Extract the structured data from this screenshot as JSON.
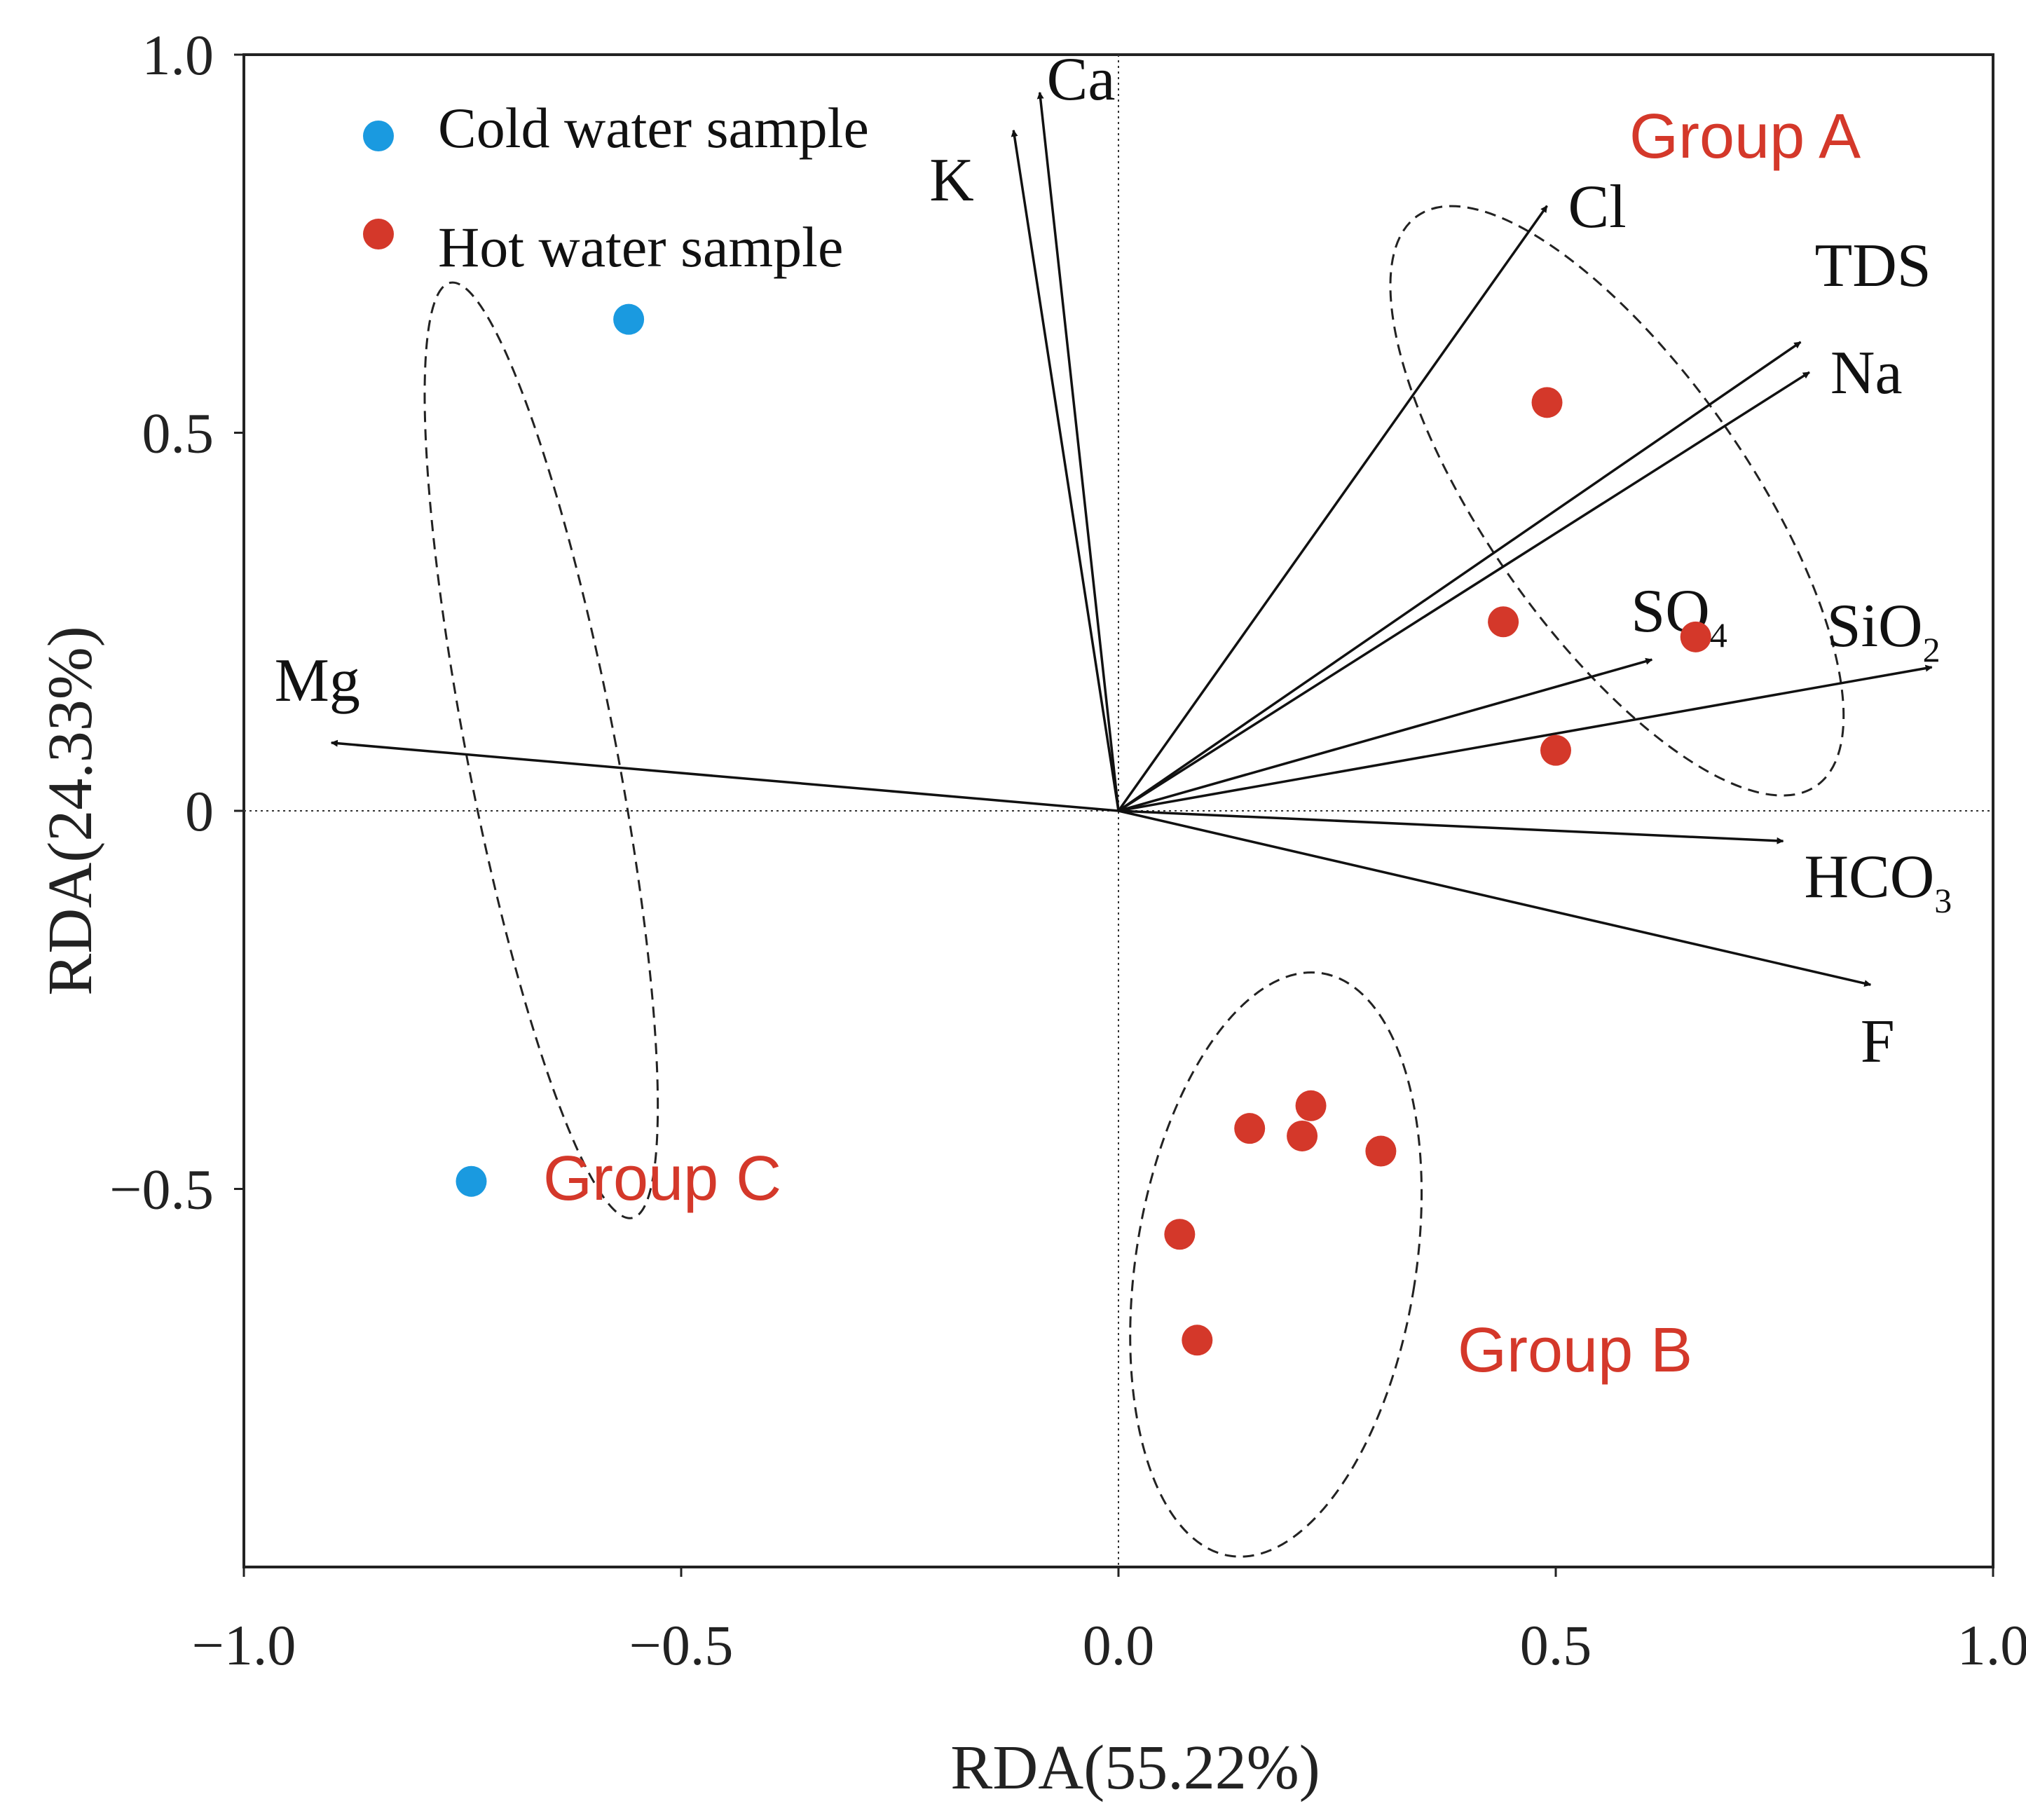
{
  "chart_data": {
    "type": "scatter",
    "subtype": "rda-biplot",
    "xlabel": "RDA(55.22%)",
    "ylabel": "RDA(24.33%)",
    "xlim": [
      -1.0,
      1.0
    ],
    "ylim": [
      -1.0,
      1.0
    ],
    "x_ticks": [
      {
        "value": -1.0,
        "label": "−1.0"
      },
      {
        "value": -0.5,
        "label": "−0.5"
      },
      {
        "value": 0.0,
        "label": "0.0"
      },
      {
        "value": 0.5,
        "label": "0.5"
      },
      {
        "value": 1.0,
        "label": "1.0"
      }
    ],
    "y_ticks": [
      {
        "value": 1.0,
        "label": "1.0"
      },
      {
        "value": 0.5,
        "label": "0.5"
      },
      {
        "value": 0.0,
        "label": "0"
      },
      {
        "value": -0.5,
        "label": "−0.5"
      }
    ],
    "zero_lines": true,
    "vectors": [
      {
        "name": "Ca",
        "sub": "",
        "x": -0.09,
        "y": 0.95
      },
      {
        "name": "K",
        "sub": "",
        "x": -0.12,
        "y": 0.9
      },
      {
        "name": "Cl",
        "sub": "",
        "x": 0.49,
        "y": 0.8
      },
      {
        "name": "TDS",
        "sub": "",
        "x": 0.78,
        "y": 0.62
      },
      {
        "name": "Na",
        "sub": "",
        "x": 0.79,
        "y": 0.58
      },
      {
        "name": "SO",
        "sub": "4",
        "x": 0.61,
        "y": 0.2
      },
      {
        "name": "SiO",
        "sub": "2",
        "x": 0.93,
        "y": 0.19
      },
      {
        "name": "HCO",
        "sub": "3",
        "x": 0.76,
        "y": -0.04
      },
      {
        "name": "F",
        "sub": "",
        "x": 0.86,
        "y": -0.23
      },
      {
        "name": "Mg",
        "sub": "",
        "x": -0.9,
        "y": 0.09
      }
    ],
    "series": [
      {
        "name": "Cold water sample",
        "color": "#1a9ae0",
        "points": [
          [
            -0.56,
            0.65
          ],
          [
            -0.74,
            -0.49
          ]
        ]
      },
      {
        "name": "Hot water sample",
        "color": "#d4382a",
        "points": [
          [
            0.49,
            0.54
          ],
          [
            0.44,
            0.25
          ],
          [
            0.66,
            0.23
          ],
          [
            0.5,
            0.08
          ],
          [
            0.15,
            -0.42
          ],
          [
            0.21,
            -0.43
          ],
          [
            0.22,
            -0.39
          ],
          [
            0.3,
            -0.45
          ],
          [
            0.07,
            -0.56
          ],
          [
            0.09,
            -0.7
          ]
        ]
      }
    ],
    "groups": [
      {
        "name": "Group A",
        "color": "#d4382a",
        "ellipse": {
          "cx": 0.57,
          "cy": 0.41,
          "rx": 0.15,
          "ry": 0.46,
          "angle": -35
        }
      },
      {
        "name": "Group B",
        "color": "#d4382a",
        "ellipse": {
          "cx": 0.18,
          "cy": -0.6,
          "rx": 0.16,
          "ry": 0.39,
          "angle": 9
        }
      },
      {
        "name": "Group C",
        "color": "#d4382a",
        "ellipse": {
          "cx": -0.66,
          "cy": 0.08,
          "rx": 0.085,
          "ry": 0.63,
          "angle": -11
        }
      }
    ],
    "legend": {
      "position": "top-left"
    }
  }
}
